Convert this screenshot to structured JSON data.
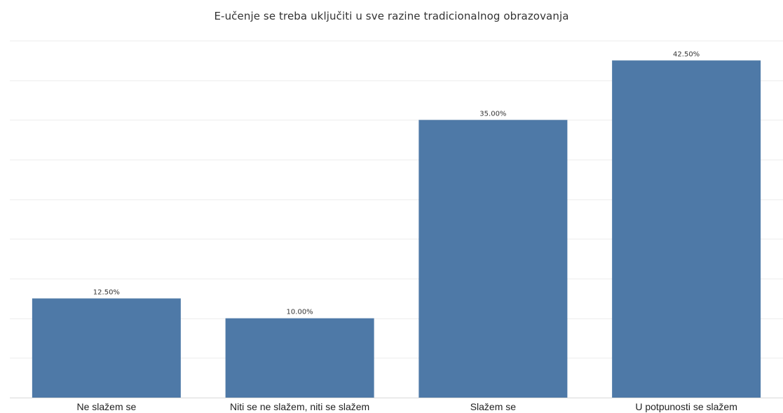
{
  "chart_data": {
    "type": "bar",
    "title": "E-učenje se treba uključiti u sve razine tradicionalnog obrazovanja",
    "xlabel": "",
    "ylabel": "",
    "categories": [
      "Ne slažem se",
      "Niti se ne slažem, niti se slažem",
      "Slažem se",
      "U potpunosti se slažem"
    ],
    "values": [
      12.5,
      10.0,
      35.0,
      42.5
    ],
    "value_labels": [
      "12.50%",
      "10.00%",
      "35.00%",
      "42.50%"
    ],
    "ylim": [
      0,
      45
    ],
    "grid": true,
    "legend": "none",
    "bar_color": "#4e79a7"
  }
}
